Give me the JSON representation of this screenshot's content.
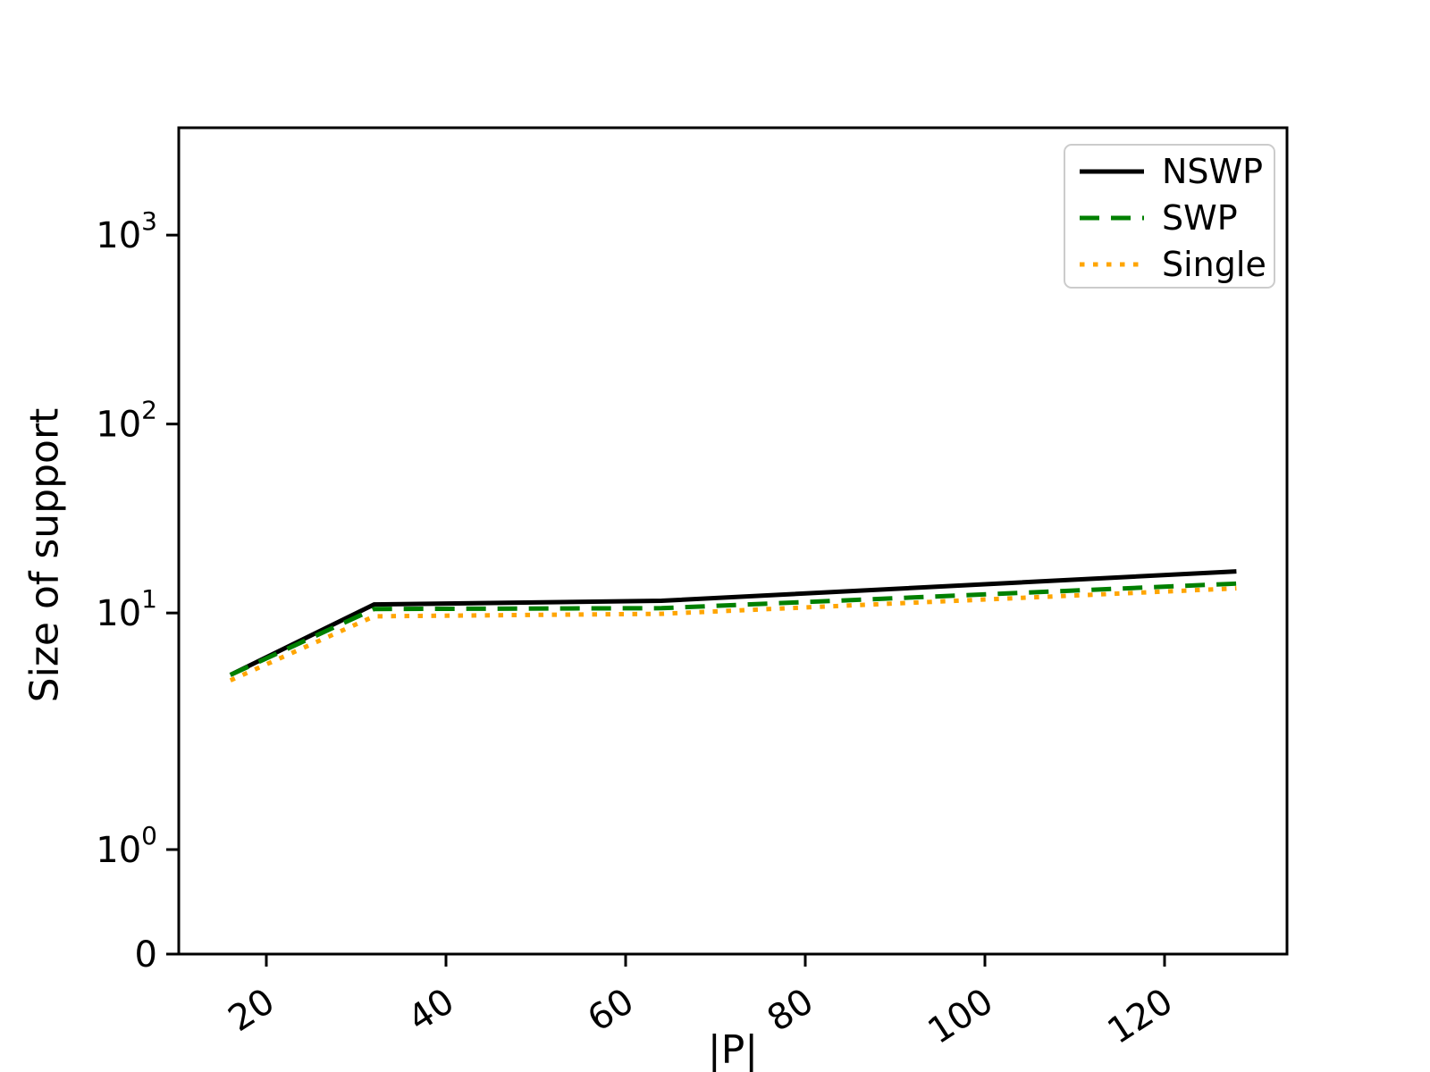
{
  "chart_data": {
    "type": "line",
    "title": "",
    "xlabel": "|P|",
    "ylabel": "Size of support",
    "yscale": "symlog",
    "grid": false,
    "legend_position": "upper right",
    "x": [
      16,
      32,
      64,
      128
    ],
    "series": [
      {
        "name": "NSWP",
        "color": "#000000",
        "style": "solid",
        "values": [
          4.7,
          11.1,
          11.6,
          16.6
        ]
      },
      {
        "name": "SWP",
        "color": "#008000",
        "style": "dashed",
        "values": [
          4.7,
          10.5,
          10.6,
          14.3
        ]
      },
      {
        "name": "Single",
        "color": "#ffa500",
        "style": "dotted",
        "values": [
          4.4,
          9.6,
          9.9,
          13.5
        ]
      }
    ],
    "xticks": [
      {
        "label": "20",
        "value": 20
      },
      {
        "label": "40",
        "value": 40
      },
      {
        "label": "60",
        "value": 60
      },
      {
        "label": "80",
        "value": 80
      },
      {
        "label": "100",
        "value": 100
      },
      {
        "label": "120",
        "value": 120
      }
    ],
    "yticks": [
      {
        "label": "0",
        "value": 0
      },
      {
        "label": "10⁰",
        "base": "10",
        "exp": "0",
        "value": 1
      },
      {
        "label": "10¹",
        "base": "10",
        "exp": "1",
        "value": 10
      },
      {
        "label": "10²",
        "base": "10",
        "exp": "2",
        "value": 100
      },
      {
        "label": "10³",
        "base": "10",
        "exp": "3",
        "value": 1000
      }
    ],
    "xlim": [
      10.4,
      133.6
    ],
    "ylim_top_exponent": 3.5
  }
}
